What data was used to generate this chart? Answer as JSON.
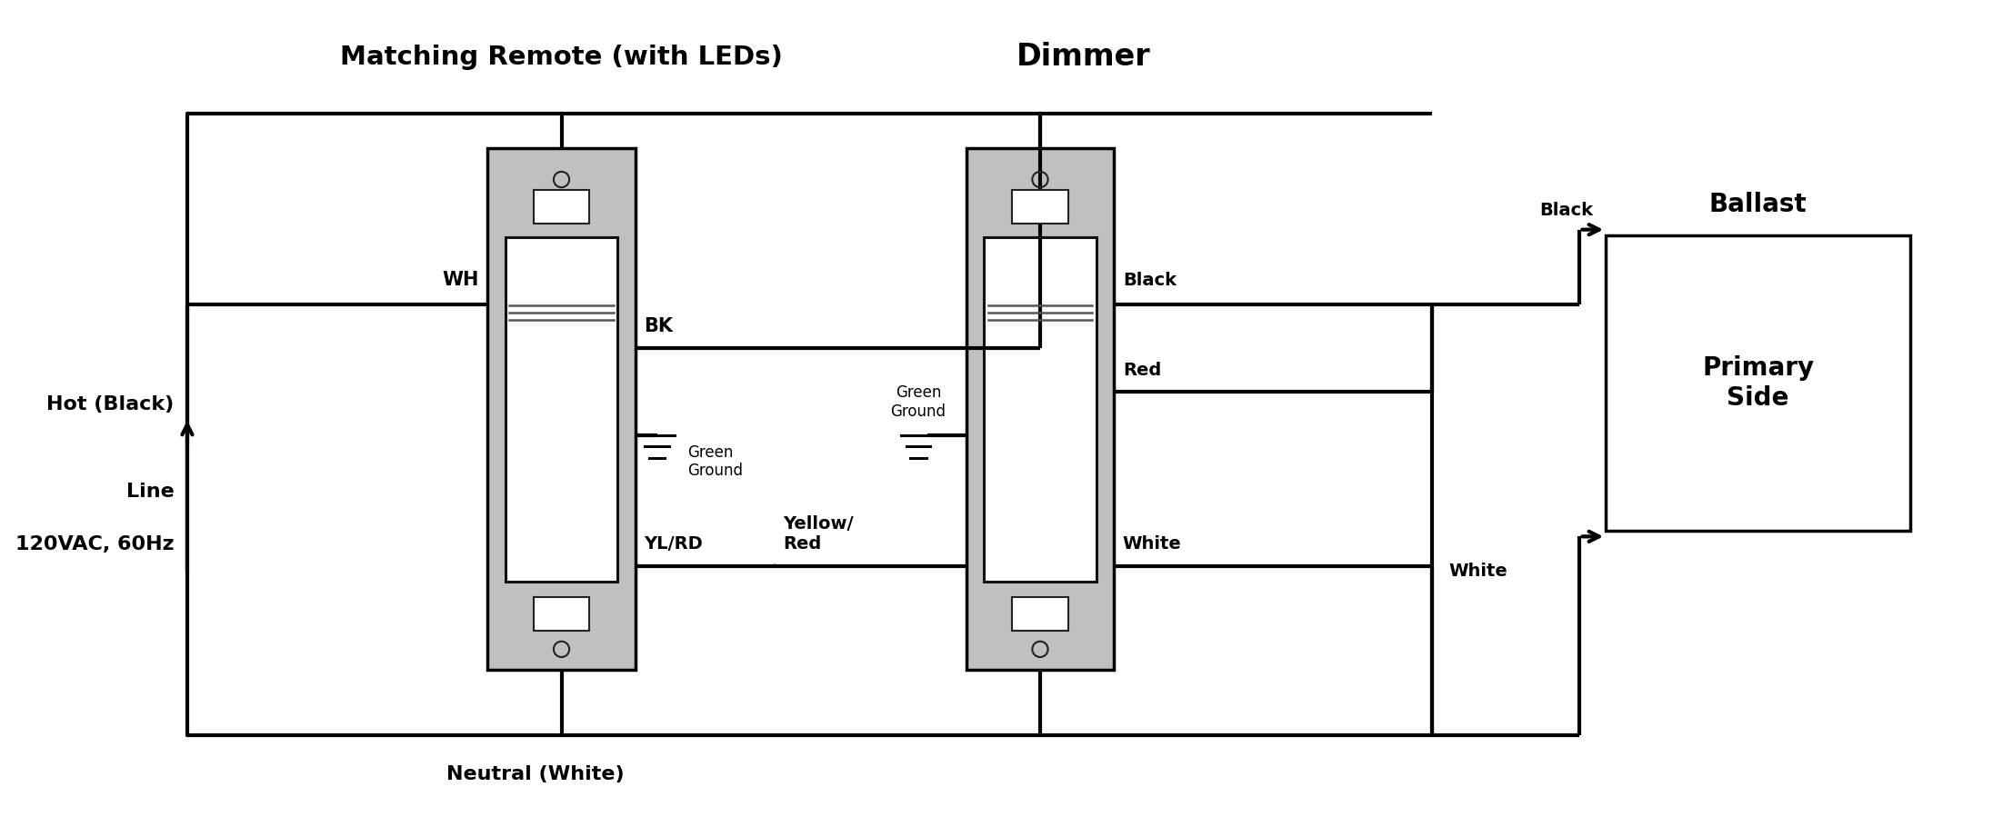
{
  "bg_color": "#ffffff",
  "lc": "#000000",
  "switch_fill": "#c0c0c0",
  "switch_border": "#000000",
  "title_remote": "Matching Remote (with LEDs)",
  "title_dimmer": "Dimmer",
  "label_hot": "Hot (Black)",
  "label_neutral": "Neutral (White)",
  "label_line1": "Line",
  "label_line2": "120VAC, 60Hz",
  "label_wh": "WH",
  "label_bk": "BK",
  "label_ylrd": "YL/RD",
  "label_gg_remote": "Green\nGround",
  "label_gg_dimmer": "Green\nGround",
  "label_yellow_red": "Yellow/\nRed",
  "label_black": "Black",
  "label_red": "Red",
  "label_white": "White",
  "label_black_ballast": "Black",
  "label_white_ballast": "White",
  "label_ballast_title": "Ballast",
  "label_ballast_body": "Primary\nSide",
  "lw": 3.0,
  "dot_r": 0.013
}
